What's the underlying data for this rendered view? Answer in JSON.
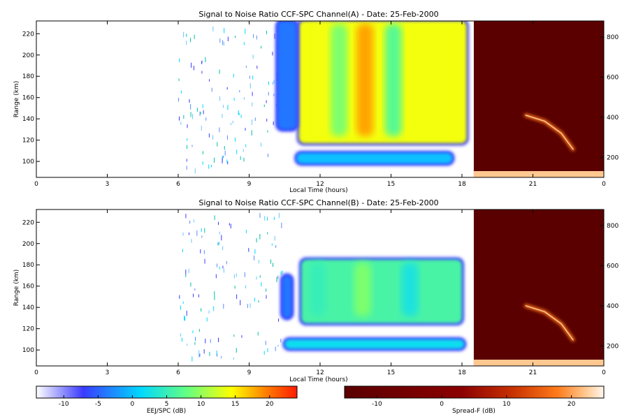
{
  "colors": {
    "background": "#ffffff",
    "axis": "#000000",
    "ejj_colormap": [
      "#ffffff",
      "#3a3aff",
      "#00d8ff",
      "#66ff80",
      "#ffff00",
      "#ff7f00",
      "#ff1a00"
    ],
    "spreadf_colormap": [
      "#5a0000",
      "#8b0000",
      "#c83200",
      "#ff7a1a",
      "#ffc890",
      "#fff6ee"
    ]
  },
  "chart_data": [
    {
      "type": "heatmap",
      "title": "Signal to Noise Ratio CCF-SPC Channel(A) - Date: 25-Feb-2000",
      "xlabel": "Local Time (hours)",
      "ylabel": "Range (km)",
      "xlim": [
        0,
        24
      ],
      "xticks": [
        "0",
        "3",
        "6",
        "9",
        "12",
        "15",
        "18",
        "21",
        "0"
      ],
      "ylim": [
        85,
        232
      ],
      "yticks": [
        100,
        120,
        140,
        160,
        180,
        200,
        220
      ],
      "y2lim": [
        100,
        880
      ],
      "y2ticks": [
        200,
        400,
        600,
        800
      ],
      "spreadf_start_hour": 18.5,
      "layers": [
        {
          "name": "main echo",
          "x": [
            11.1,
            18.2
          ],
          "y": [
            117,
            232
          ],
          "peak_db": 14
        },
        {
          "name": "lower echo",
          "x": [
            11.0,
            17.6
          ],
          "y": [
            98,
            108
          ],
          "peak_db": 0
        },
        {
          "name": "echo onset",
          "x": [
            10.2,
            11.0
          ],
          "y": [
            130,
            232
          ],
          "peak_db": -4
        }
      ],
      "hot_columns": [
        {
          "x": 12.0,
          "db": 14
        },
        {
          "x": 13.9,
          "db": 18
        },
        {
          "x": 12.8,
          "db": 9
        },
        {
          "x": 15.1,
          "db": 7
        }
      ],
      "spreadf_trace": [
        {
          "hour": 20.7,
          "km": 410
        },
        {
          "hour": 21.5,
          "km": 380
        },
        {
          "hour": 22.2,
          "km": 320
        },
        {
          "hour": 22.7,
          "km": 240
        }
      ]
    },
    {
      "type": "heatmap",
      "title": "Signal to Noise Ratio CCF-SPC Channel(B) - Date: 25-Feb-2000",
      "xlabel": "Local Time (hours)",
      "ylabel": "Range (km)",
      "xlim": [
        0,
        24
      ],
      "xticks": [
        "0",
        "3",
        "6",
        "9",
        "12",
        "15",
        "18",
        "21",
        "0"
      ],
      "ylim": [
        85,
        232
      ],
      "yticks": [
        100,
        120,
        140,
        160,
        180,
        200,
        220
      ],
      "y2lim": [
        100,
        880
      ],
      "y2ticks": [
        200,
        400,
        600,
        800
      ],
      "spreadf_start_hour": 18.5,
      "layers": [
        {
          "name": "main echo",
          "x": [
            11.2,
            18.0
          ],
          "y": [
            125,
            185
          ],
          "peak_db": 6
        },
        {
          "name": "lower echo",
          "x": [
            10.5,
            18.1
          ],
          "y": [
            101,
            110
          ],
          "peak_db": 2
        },
        {
          "name": "echo onset",
          "x": [
            10.4,
            10.8
          ],
          "y": [
            130,
            170
          ],
          "peak_db": -4
        }
      ],
      "hot_columns": [
        {
          "x": 13.8,
          "db": 9
        },
        {
          "x": 11.9,
          "db": 5
        },
        {
          "x": 15.8,
          "db": 3
        }
      ],
      "spreadf_trace": [
        {
          "hour": 20.7,
          "km": 400
        },
        {
          "hour": 21.5,
          "km": 370
        },
        {
          "hour": 22.2,
          "km": 310
        },
        {
          "hour": 22.7,
          "km": 230
        }
      ]
    }
  ],
  "colorbars": [
    {
      "label": "EEJ/SPC (dB)",
      "min": -14,
      "max": 24,
      "ticks": [
        -10,
        -5,
        0,
        5,
        10,
        15,
        20
      ]
    },
    {
      "label": "Spread-F (dB)",
      "min": -15,
      "max": 25,
      "ticks": [
        -10,
        0,
        10,
        20
      ]
    }
  ]
}
